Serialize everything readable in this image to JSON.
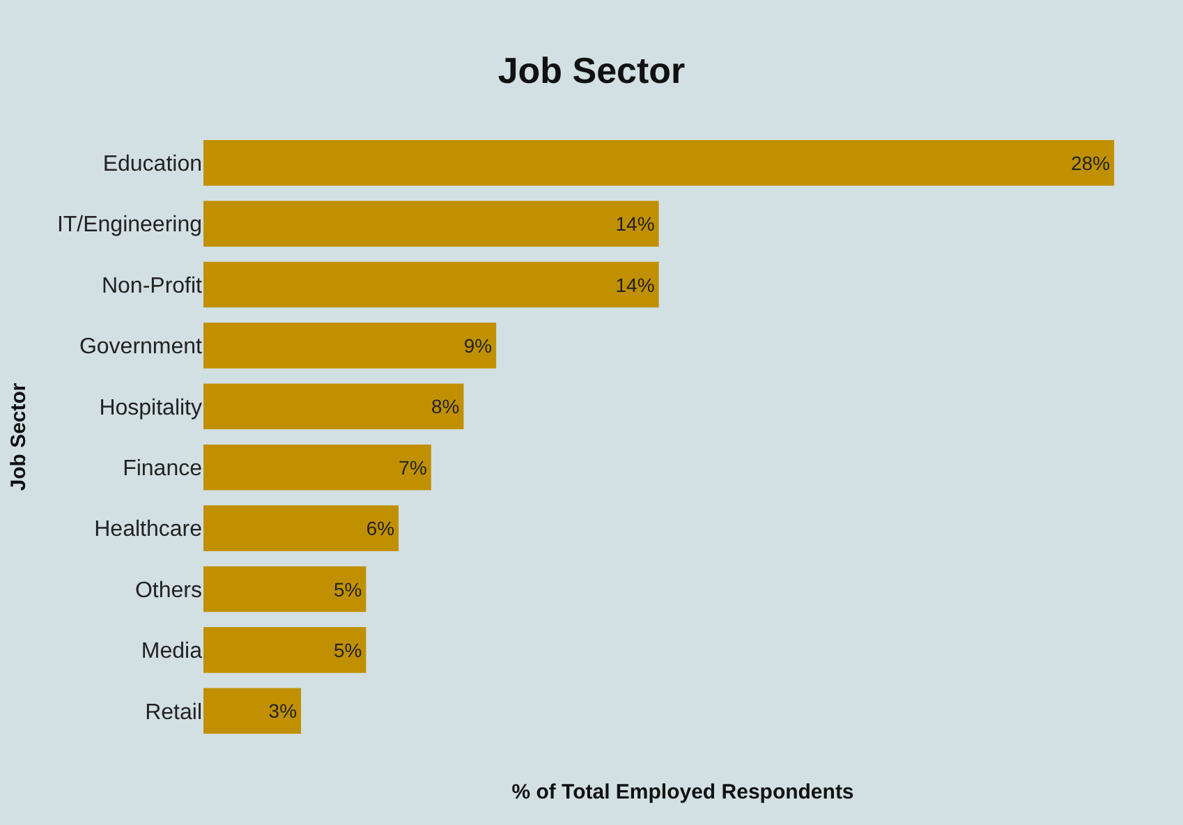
{
  "chart_data": {
    "type": "bar",
    "orientation": "horizontal",
    "title": "Job Sector",
    "xlabel": "% of Total Employed Respondents",
    "ylabel": "Job Sector",
    "categories": [
      "Education",
      "IT/Engineering",
      "Non-Profit",
      "Government",
      "Hospitality",
      "Finance",
      "Healthcare",
      "Others",
      "Media",
      "Retail"
    ],
    "values": [
      28,
      14,
      14,
      9,
      8,
      7,
      6,
      5,
      5,
      3
    ],
    "value_labels": [
      "28%",
      "14%",
      "14%",
      "9%",
      "8%",
      "7%",
      "6%",
      "5%",
      "5%",
      "3%"
    ],
    "color": "#c09000",
    "grid": false,
    "legend": false
  }
}
